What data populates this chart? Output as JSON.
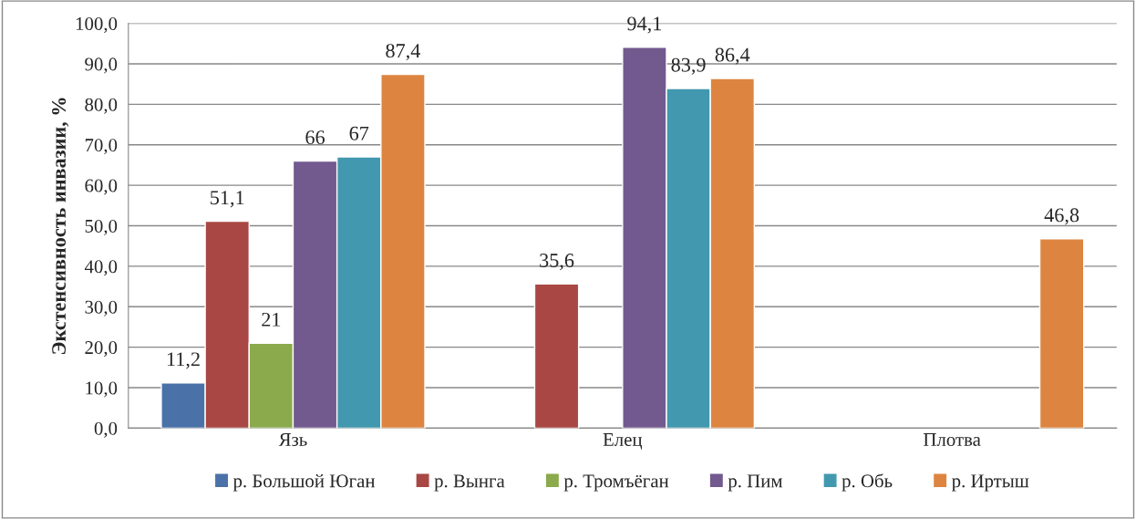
{
  "chart_data": {
    "type": "bar",
    "ylabel": "Экстенсивность инвазии, %",
    "categories": [
      "Язь",
      "Елец",
      "Плотва"
    ],
    "series": [
      {
        "name": "р. Большой Юган",
        "color": "#4a72a8",
        "values": [
          11.2,
          null,
          null
        ],
        "value_labels": [
          "11,2",
          null,
          null
        ]
      },
      {
        "name": "р. Вынга",
        "color": "#a84743",
        "values": [
          51.1,
          35.6,
          null
        ],
        "value_labels": [
          "51,1",
          "35,6",
          null
        ]
      },
      {
        "name": "р. Тромъёган",
        "color": "#8aaa4c",
        "values": [
          21,
          null,
          null
        ],
        "value_labels": [
          "21",
          null,
          null
        ]
      },
      {
        "name": "р. Пим",
        "color": "#72598e",
        "values": [
          66,
          94.1,
          null
        ],
        "value_labels": [
          "66",
          "94,1",
          null
        ]
      },
      {
        "name": "р. Обь",
        "color": "#4298ae",
        "values": [
          67,
          83.9,
          null
        ],
        "value_labels": [
          "67",
          "83,9",
          null
        ]
      },
      {
        "name": "р. Иртыш",
        "color": "#dd8540",
        "values": [
          87.4,
          86.4,
          46.8
        ],
        "value_labels": [
          "87,4",
          "86,4",
          "46,8"
        ]
      }
    ],
    "ylim": [
      0,
      100
    ],
    "yticks": [
      {
        "value": 0,
        "label": "0,0"
      },
      {
        "value": 10,
        "label": "10,0"
      },
      {
        "value": 20,
        "label": "20,0"
      },
      {
        "value": 30,
        "label": "30,0"
      },
      {
        "value": 40,
        "label": "40,0"
      },
      {
        "value": 50,
        "label": "50,0"
      },
      {
        "value": 60,
        "label": "60,0"
      },
      {
        "value": 70,
        "label": "70,0"
      },
      {
        "value": 80,
        "label": "80,0"
      },
      {
        "value": 90,
        "label": "90,0"
      },
      {
        "value": 100,
        "label": "100,0"
      }
    ],
    "grid": "y",
    "legend": "bottom"
  }
}
